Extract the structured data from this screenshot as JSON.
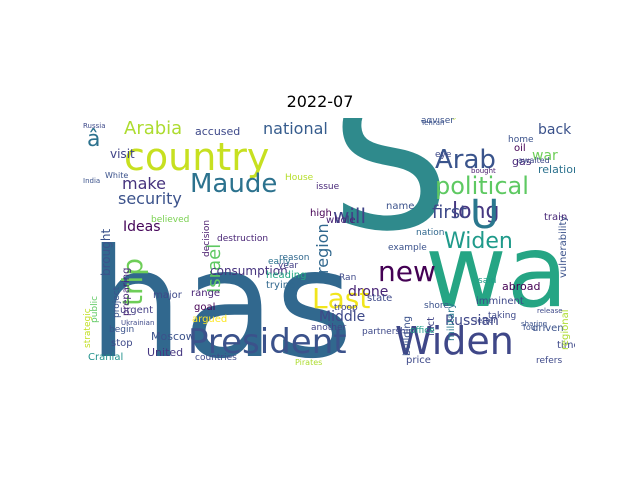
{
  "figure": {
    "title": "2022-07"
  },
  "words": [
    {
      "text": "has",
      "color": "#31688e"
    },
    {
      "text": "S",
      "color": "#2f8a8c"
    },
    {
      "text": "wa",
      "color": "#25a584"
    },
    {
      "text": "President",
      "color": "#3b528b"
    },
    {
      "text": "Widen",
      "color": "#3f4788"
    },
    {
      "text": "country",
      "color": "#c7e020"
    },
    {
      "text": "new",
      "color": "#440154"
    },
    {
      "text": "political",
      "color": "#5ec962"
    },
    {
      "text": "Arab",
      "color": "#3a548c"
    },
    {
      "text": "Maude",
      "color": "#2c728e"
    },
    {
      "text": "long",
      "color": "#453781"
    },
    {
      "text": "first",
      "color": "#3e4a89"
    },
    {
      "text": "Widen",
      "color": "#1f9a8a"
    },
    {
      "text": "trip",
      "color": "#6ece58"
    },
    {
      "text": "Last",
      "color": "#f1e51d"
    },
    {
      "text": "will",
      "color": "#404387"
    },
    {
      "text": "Arabia",
      "color": "#addc30"
    },
    {
      "text": "national",
      "color": "#365c8d"
    },
    {
      "text": "make",
      "color": "#46337e"
    },
    {
      "text": "security",
      "color": "#3b528b"
    },
    {
      "text": "Israel",
      "color": "#5ec962"
    },
    {
      "text": "region",
      "color": "#31688e"
    },
    {
      "text": "Ideas",
      "color": "#450559"
    },
    {
      "text": "Middle",
      "color": "#3e4989"
    },
    {
      "text": "Russian",
      "color": "#3f4788"
    },
    {
      "text": "drone",
      "color": "#482475"
    },
    {
      "text": "U",
      "color": "#2a778e"
    },
    {
      "text": "â",
      "color": "#2c728e"
    },
    {
      "text": "back",
      "color": "#3b528b"
    },
    {
      "text": "relation",
      "color": "#2c728e"
    },
    {
      "text": "consumption",
      "color": "#46337e"
    },
    {
      "text": "brought",
      "color": "#3b528b"
    },
    {
      "text": "visit",
      "color": "#404387"
    },
    {
      "text": "accused",
      "color": "#3e4989"
    },
    {
      "text": "Moscow",
      "color": "#3b528b"
    },
    {
      "text": "United",
      "color": "#453781"
    },
    {
      "text": "range",
      "color": "#482475"
    },
    {
      "text": "goal",
      "color": "#440154"
    },
    {
      "text": "trying",
      "color": "#31688e"
    },
    {
      "text": "heading",
      "color": "#22a884"
    },
    {
      "text": "argued",
      "color": "#fde725"
    },
    {
      "text": "major",
      "color": "#3e4989"
    },
    {
      "text": "urgent",
      "color": "#433e85"
    },
    {
      "text": "preparing",
      "color": "#482878"
    },
    {
      "text": "project",
      "color": "#3b528b"
    },
    {
      "text": "stop",
      "color": "#3e4989"
    },
    {
      "text": "Cranial",
      "color": "#21918c"
    },
    {
      "text": "begin",
      "color": "#3b528b"
    },
    {
      "text": "public",
      "color": "#5ec962"
    },
    {
      "text": "strategic",
      "color": "#c2df23"
    },
    {
      "text": "countries",
      "color": "#3e4989"
    },
    {
      "text": "decision",
      "color": "#481a6c"
    },
    {
      "text": "destruction",
      "color": "#482475"
    },
    {
      "text": "believed",
      "color": "#7ad151"
    },
    {
      "text": "year",
      "color": "#433e85"
    },
    {
      "text": "name",
      "color": "#3b528b"
    },
    {
      "text": "whole",
      "color": "#482475"
    },
    {
      "text": "high",
      "color": "#440154"
    },
    {
      "text": "issue",
      "color": "#482878"
    },
    {
      "text": "troop",
      "color": "#414487"
    },
    {
      "text": "state",
      "color": "#3e4989"
    },
    {
      "text": "shore",
      "color": "#3b528b"
    },
    {
      "text": "another",
      "color": "#414487"
    },
    {
      "text": "Ran",
      "color": "#3e4989"
    },
    {
      "text": "abroad",
      "color": "#440154"
    },
    {
      "text": "military",
      "color": "#2a788e"
    },
    {
      "text": "building",
      "color": "#3b528b"
    },
    {
      "text": "price",
      "color": "#3e4989"
    },
    {
      "text": "fact",
      "color": "#414487"
    },
    {
      "text": "imminent",
      "color": "#3e4989"
    },
    {
      "text": "taking",
      "color": "#3e4989"
    },
    {
      "text": "driven",
      "color": "#3b528b"
    },
    {
      "text": "time",
      "color": "#3e4989"
    },
    {
      "text": "refers",
      "color": "#3e4989"
    },
    {
      "text": "regional",
      "color": "#addc30"
    },
    {
      "text": "vulnerability",
      "color": "#3b528b"
    },
    {
      "text": "train",
      "color": "#482878"
    },
    {
      "text": "oil",
      "color": "#440154"
    },
    {
      "text": "gas",
      "color": "#482878"
    },
    {
      "text": "war",
      "color": "#6ece58"
    },
    {
      "text": "said",
      "color": "#1f9e89"
    },
    {
      "text": "nation",
      "color": "#31688e"
    },
    {
      "text": "partnership",
      "color": "#3e4989"
    },
    {
      "text": "adviser",
      "color": "#3b528b"
    },
    {
      "text": "reason",
      "color": "#31688e"
    },
    {
      "text": "early",
      "color": "#2c728e"
    },
    {
      "text": "office",
      "color": "#1f9e89"
    },
    {
      "text": "example",
      "color": "#3b528b"
    },
    {
      "text": "home",
      "color": "#3b528b"
    },
    {
      "text": "House",
      "color": "#b5de2b"
    },
    {
      "text": "White",
      "color": "#3b528b"
    },
    {
      "text": "India",
      "color": "#3b528b"
    },
    {
      "text": "Russia",
      "color": "#3e4989"
    },
    {
      "text": "letter",
      "color": "#3e4989"
    },
    {
      "text": "Pirates",
      "color": "#addc30"
    },
    {
      "text": "awaited",
      "color": "#3e4989"
    },
    {
      "text": "eye",
      "color": "#3e4989"
    },
    {
      "text": "four",
      "color": "#3b528b"
    },
    {
      "text": "English",
      "color": "#b5de2b"
    },
    {
      "text": "Tehran",
      "color": "#3b528b"
    },
    {
      "text": "Ukrainian",
      "color": "#3e4989"
    },
    {
      "text": "bought",
      "color": "#481a6c"
    },
    {
      "text": "sharing",
      "color": "#3b528b"
    },
    {
      "text": "release",
      "color": "#3e4989"
    }
  ]
}
